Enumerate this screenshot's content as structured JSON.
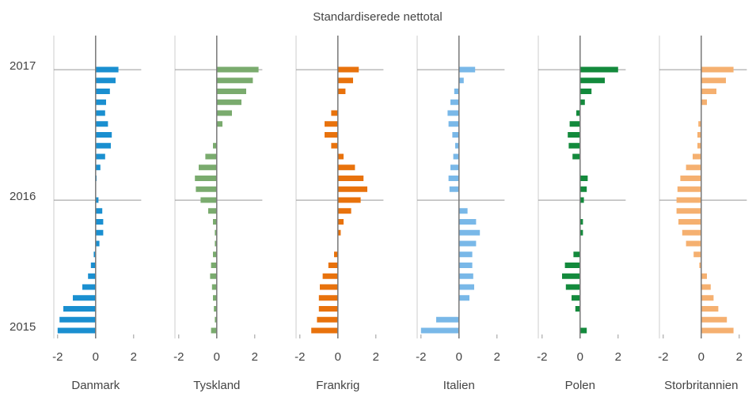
{
  "chart_data": {
    "type": "bar",
    "orientation": "horizontal",
    "title": "Standardiserede nettotal",
    "categories": [
      "2015",
      null,
      null,
      null,
      null,
      null,
      null,
      null,
      null,
      null,
      null,
      null,
      "2016",
      null,
      null,
      null,
      null,
      null,
      null,
      null,
      null,
      null,
      null,
      null,
      "2017"
    ],
    "xlim": [
      -2.2,
      2.4
    ],
    "xticks": [
      -2,
      0,
      2
    ],
    "series": [
      {
        "name": "Danmark",
        "color": "#1a8fd0",
        "values": [
          -2.0,
          -1.9,
          -1.7,
          -1.2,
          -0.7,
          -0.4,
          -0.25,
          -0.1,
          0.2,
          0.4,
          0.4,
          0.35,
          0.15,
          0.0,
          0.05,
          0.25,
          0.5,
          0.8,
          0.85,
          0.65,
          0.5,
          0.55,
          0.75,
          1.05,
          1.2
        ]
      },
      {
        "name": "Tyskland",
        "color": "#7aab6e",
        "values": [
          -0.3,
          -0.1,
          -0.15,
          -0.2,
          -0.25,
          -0.35,
          -0.3,
          -0.2,
          -0.1,
          -0.1,
          -0.2,
          -0.45,
          -0.85,
          -1.1,
          -1.15,
          -0.95,
          -0.6,
          -0.2,
          0.0,
          0.3,
          0.8,
          1.3,
          1.55,
          1.9,
          2.2
        ]
      },
      {
        "name": "Frankrig",
        "color": "#e8720c",
        "values": [
          -1.4,
          -1.1,
          -1.0,
          -1.0,
          -0.95,
          -0.8,
          -0.5,
          -0.2,
          0.0,
          0.15,
          0.3,
          0.7,
          1.2,
          1.55,
          1.35,
          0.9,
          0.3,
          -0.35,
          -0.7,
          -0.7,
          -0.35,
          0.0,
          0.4,
          0.8,
          1.1
        ]
      },
      {
        "name": "Italien",
        "color": "#79b8e8",
        "values": [
          -2.0,
          -1.2,
          0.0,
          0.55,
          0.8,
          0.75,
          0.7,
          0.7,
          0.9,
          1.1,
          0.9,
          0.45,
          0.0,
          -0.5,
          -0.55,
          -0.45,
          -0.3,
          -0.2,
          -0.35,
          -0.55,
          -0.6,
          -0.45,
          -0.25,
          0.25,
          0.85
        ]
      },
      {
        "name": "Polen",
        "color": "#138a3c",
        "values": [
          0.35,
          0.0,
          -0.25,
          -0.45,
          -0.75,
          -0.95,
          -0.8,
          -0.35,
          0.0,
          0.15,
          0.15,
          0.0,
          0.2,
          0.35,
          0.4,
          0.0,
          -0.4,
          -0.6,
          -0.65,
          -0.55,
          -0.2,
          0.25,
          0.6,
          1.3,
          2.0
        ]
      },
      {
        "name": "Storbritannien",
        "color": "#f5b070",
        "values": [
          1.7,
          1.35,
          0.9,
          0.65,
          0.5,
          0.3,
          -0.1,
          -0.4,
          -0.8,
          -1.0,
          -1.2,
          -1.3,
          -1.3,
          -1.25,
          -1.1,
          -0.8,
          -0.45,
          -0.2,
          -0.2,
          -0.15,
          0.0,
          0.3,
          0.8,
          1.3,
          1.7
        ]
      }
    ]
  }
}
